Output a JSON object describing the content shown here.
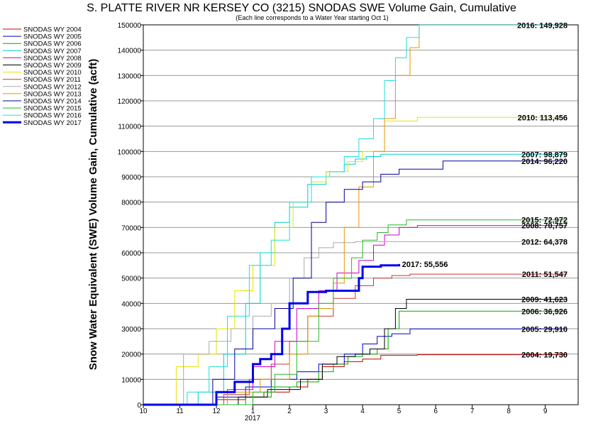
{
  "chart_data": {
    "type": "line",
    "title": "S. PLATTE RIVER NR KERSEY CO (3215) SNODAS SWE Volume Gain, Cumulative",
    "subtitle": "(Each line corresponds to a Water Year starting Oct 1)",
    "ylabel": "Snow Water Equivalent (SWE) Volume Gain, Cumulative (acft)",
    "xlabel": "",
    "x_tick_labels": [
      "10",
      "11",
      "12",
      "1",
      "2",
      "3",
      "4",
      "5",
      "6",
      "7",
      "8",
      "9"
    ],
    "x_year_label": "2017",
    "xlim": [
      10,
      21.9
    ],
    "ylim": [
      0,
      150000
    ],
    "y_ticks": [
      0,
      10000,
      20000,
      30000,
      40000,
      50000,
      60000,
      70000,
      80000,
      90000,
      100000,
      110000,
      120000,
      130000,
      140000,
      150000
    ],
    "grid": "horizontal",
    "legend_position": "left",
    "series": [
      {
        "name": "SNODAS WY 2004",
        "color": "#cc0000",
        "end_label": "2004: 19,730",
        "x": [
          10,
          11.6,
          12.0,
          12.8,
          13.3,
          14.0,
          14.5,
          14.9,
          15.5,
          16.0,
          16.5,
          17.5,
          18.5,
          21.6
        ],
        "y": [
          0,
          0,
          2000,
          3000,
          5000,
          7000,
          10000,
          15000,
          17000,
          18000,
          19500,
          19730,
          19730,
          19730
        ]
      },
      {
        "name": "SNODAS WY 2005",
        "color": "#0000cc",
        "end_label": "2005: 29,910",
        "x": [
          10,
          11.5,
          12.0,
          12.8,
          13.5,
          14.2,
          14.8,
          15.5,
          16.0,
          16.4,
          16.8,
          17.3,
          18.5,
          21.6
        ],
        "y": [
          0,
          0,
          3000,
          7000,
          10000,
          13000,
          16000,
          20000,
          24000,
          27000,
          28000,
          29910,
          29910,
          29910
        ]
      },
      {
        "name": "SNODAS WY 2006",
        "color": "#00aa00",
        "end_label": "2006: 36,926",
        "x": [
          10,
          12.0,
          12.8,
          13.5,
          14.2,
          14.8,
          15.2,
          15.6,
          16.0,
          16.4,
          16.7,
          17.0,
          18.0,
          21.6
        ],
        "y": [
          0,
          0,
          3000,
          7000,
          9000,
          13000,
          16000,
          19000,
          20000,
          22000,
          30000,
          36926,
          36926,
          36926
        ]
      },
      {
        "name": "SNODAS WY 2007",
        "color": "#00cccc",
        "end_label": "2007: 98,879",
        "x": [
          10,
          10.9,
          11.5,
          12.2,
          12.8,
          13.2,
          13.6,
          14.0,
          14.5,
          15.0,
          15.5,
          15.8,
          16.1,
          16.5,
          17.5,
          21.6
        ],
        "y": [
          0,
          0,
          5000,
          20000,
          40000,
          60000,
          72000,
          78000,
          87000,
          92000,
          95000,
          97000,
          98000,
          98879,
          98879,
          98879
        ]
      },
      {
        "name": "SNODAS WY 2008",
        "color": "#cc00cc",
        "end_label": "2008: 70,757",
        "x": [
          10,
          11.8,
          12.3,
          13.0,
          13.6,
          14.2,
          14.8,
          15.3,
          15.9,
          16.3,
          16.6,
          17.0,
          17.5,
          21.6
        ],
        "y": [
          0,
          0,
          6000,
          15000,
          25000,
          38000,
          45000,
          52000,
          57000,
          63000,
          67000,
          70000,
          70757,
          70757
        ]
      },
      {
        "name": "SNODAS WY 2009",
        "color": "#000000",
        "end_label": "2009: 41,623",
        "x": [
          10,
          11.8,
          12.6,
          13.4,
          14.3,
          14.9,
          15.3,
          15.8,
          16.2,
          16.6,
          16.9,
          17.2,
          18.0,
          21.6
        ],
        "y": [
          0,
          0,
          3000,
          6000,
          10000,
          16000,
          19000,
          20000,
          22000,
          30000,
          38000,
          41623,
          41623,
          41623
        ]
      },
      {
        "name": "SNODAS WY 2010",
        "color": "#e6e600",
        "end_label": "2010: 113,456",
        "x": [
          10,
          10.7,
          10.9,
          11.5,
          12.0,
          12.5,
          13.0,
          13.6,
          14.1,
          14.6,
          15.0,
          15.6,
          16.0,
          16.6,
          17.5,
          21.6
        ],
        "y": [
          0,
          0,
          15000,
          20000,
          30000,
          45000,
          55000,
          70000,
          80000,
          88000,
          92000,
          96000,
          100000,
          112000,
          113456,
          113456
        ]
      },
      {
        "name": "SNODAS WY 2011",
        "color": "#cc3333",
        "end_label": "2011: 51,547",
        "x": [
          10,
          11.6,
          12.2,
          12.9,
          13.5,
          14.0,
          14.5,
          15.2,
          15.8,
          16.3,
          16.8,
          17.3,
          18.0,
          21.6
        ],
        "y": [
          0,
          0,
          4000,
          10000,
          16000,
          25000,
          35000,
          42000,
          47000,
          50000,
          51000,
          51547,
          51547,
          51547
        ]
      },
      {
        "name": "SNODAS WY 2012",
        "color": "#aaaaaa",
        "end_label": "2012: 64,378",
        "x": [
          10,
          10.8,
          11.1,
          11.8,
          12.4,
          13.0,
          13.5,
          14.0,
          14.4,
          14.8,
          15.2,
          15.8,
          16.2,
          17.0,
          21.6
        ],
        "y": [
          0,
          0,
          20000,
          25000,
          30000,
          35000,
          40000,
          50000,
          58000,
          62000,
          64000,
          64378,
          64378,
          64378,
          64378
        ]
      },
      {
        "name": "SNODAS WY 2013",
        "color": "#e69500",
        "end_label": "",
        "x": [
          10,
          11.5,
          12.3,
          13.2,
          14.0,
          14.5,
          14.8,
          15.2,
          15.5,
          15.9,
          16.3,
          16.6,
          16.9,
          17.3,
          17.55
        ],
        "y": [
          0,
          0,
          5000,
          10000,
          20000,
          35000,
          38000,
          48000,
          70000,
          86000,
          100000,
          113000,
          130000,
          141000,
          149000
        ]
      },
      {
        "name": "SNODAS WY 2014",
        "color": "#000099",
        "end_label": "2014: 96,220",
        "x": [
          10,
          11.4,
          11.9,
          12.5,
          13.0,
          13.6,
          14.1,
          14.6,
          15.0,
          15.5,
          16.0,
          16.5,
          17.0,
          18.2,
          21.6
        ],
        "y": [
          0,
          0,
          10000,
          22000,
          30000,
          38000,
          50000,
          72000,
          80000,
          85000,
          88000,
          91000,
          93000,
          96220,
          96220
        ]
      },
      {
        "name": "SNODAS WY 2015",
        "color": "#22bb22",
        "end_label": "2015: 72,972",
        "x": [
          10,
          12.3,
          13.0,
          13.6,
          14.2,
          14.8,
          15.2,
          15.7,
          16.0,
          16.4,
          16.7,
          17.2,
          18.0,
          21.6
        ],
        "y": [
          0,
          0,
          5000,
          12000,
          25000,
          40000,
          50000,
          58000,
          65000,
          68000,
          71000,
          72972,
          72972,
          72972
        ]
      },
      {
        "name": "SNODAS WY 2016",
        "color": "#22dddd",
        "end_label": "2016: 149,928",
        "x": [
          10,
          10.6,
          11.2,
          11.8,
          12.3,
          12.9,
          13.5,
          14.0,
          14.6,
          15.1,
          15.5,
          15.9,
          16.3,
          16.6,
          16.9,
          17.2,
          17.55,
          21.6
        ],
        "y": [
          0,
          0,
          5000,
          15000,
          35000,
          55000,
          65000,
          80000,
          90000,
          92000,
          98000,
          105000,
          113000,
          128000,
          137000,
          145000,
          149928,
          149928
        ]
      },
      {
        "name": "SNODAS WY 2017",
        "color": "#0000ee",
        "end_label": "2017: 55,556",
        "x": [
          10,
          11.5,
          12.0,
          12.5,
          13.0,
          13.2,
          13.5,
          13.8,
          14.0,
          14.5,
          15.0,
          15.7,
          15.9,
          16.0,
          16.5,
          17.0
        ],
        "y": [
          0,
          0,
          5000,
          9000,
          16000,
          18000,
          20000,
          30000,
          40000,
          44500,
          45000,
          45000,
          50000,
          54500,
          55000,
          55556
        ]
      }
    ]
  }
}
